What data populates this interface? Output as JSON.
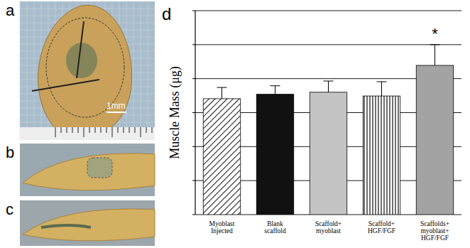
{
  "figure": {
    "panel_labels": [
      "a",
      "b",
      "c"
    ],
    "scale_bar_label": "1mm"
  },
  "chart_data": {
    "type": "bar",
    "panel_label": "d",
    "y_label": "Muscle Mass (μg)",
    "categories": [
      "Myoblast\nInjected",
      "Blank\nscaffold",
      "Scaffold+\nmyoblast",
      "Scaffold+\nHGF/FGF",
      "Scaffolds+\nmyoblast+\nHGF/FGF"
    ],
    "values": [
      34.1,
      35.4,
      36.0,
      34.9,
      43.9
    ],
    "errors": [
      3.3,
      2.5,
      3.3,
      4.2,
      6.1
    ],
    "colors": [
      "#ffffff",
      "#111111",
      "#c4c4c4",
      "#ffffff",
      "#a3a3a3"
    ],
    "annotations": [
      {
        "text": "*",
        "index": 4
      }
    ],
    "ylim": [
      0,
      60
    ],
    "yticks": [
      0,
      10,
      20,
      30,
      40,
      50,
      60
    ],
    "grid": true,
    "tick_labels": "x"
  }
}
